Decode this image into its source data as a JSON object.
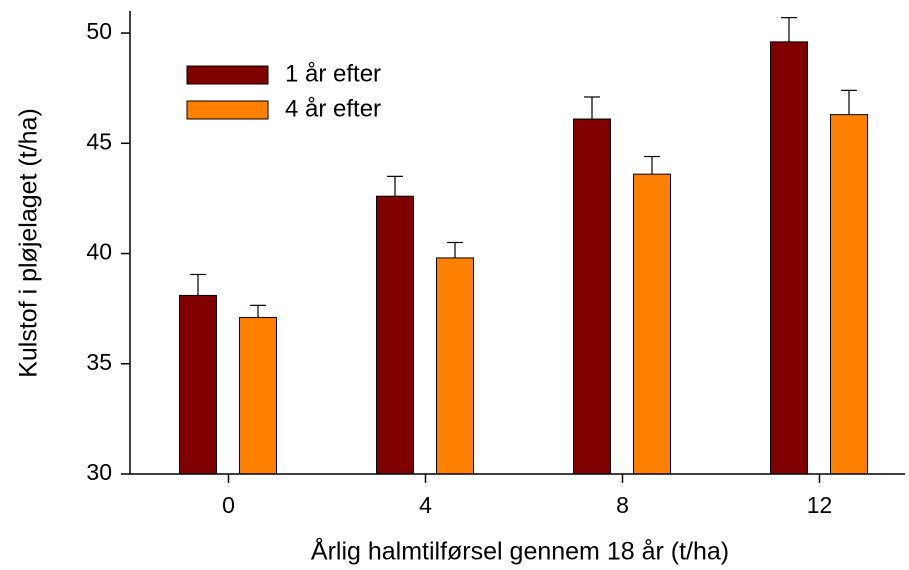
{
  "chart_data": {
    "type": "bar",
    "x_label": "Årlig halmtilførsel gennem 18 år (t/ha)",
    "y_label": "Kulstof i pløjelaget (t/ha)",
    "categories": [
      "0",
      "4",
      "8",
      "12"
    ],
    "series": [
      {
        "name": "1 år efter",
        "color": "#800000",
        "values": [
          38.1,
          42.6,
          46.1,
          49.6
        ],
        "errors": [
          0.95,
          0.9,
          1.0,
          1.1
        ]
      },
      {
        "name": "4 år efter",
        "color": "#ff8000",
        "values": [
          37.1,
          39.8,
          43.6,
          46.3
        ],
        "errors": [
          0.55,
          0.7,
          0.8,
          1.1
        ]
      }
    ],
    "ylim": [
      30,
      51
    ],
    "yticks": [
      30,
      35,
      40,
      45,
      50
    ],
    "grid": false,
    "legend": "upper left"
  }
}
